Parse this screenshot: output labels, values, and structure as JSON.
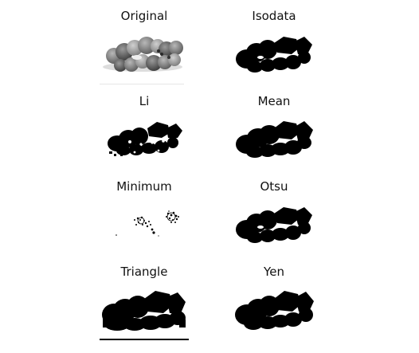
{
  "panels": [
    {
      "title": "Original"
    },
    {
      "title": "Isodata"
    },
    {
      "title": "Li"
    },
    {
      "title": "Mean"
    },
    {
      "title": "Minimum"
    },
    {
      "title": "Otsu"
    },
    {
      "title": "Triangle"
    },
    {
      "title": "Yen"
    }
  ],
  "colors": {
    "background": "#ffffff",
    "foreground": "#000000",
    "gray_light": "#bdbdbd",
    "gray_mid": "#8a8a8a",
    "gray_dark": "#4a4a4a"
  }
}
